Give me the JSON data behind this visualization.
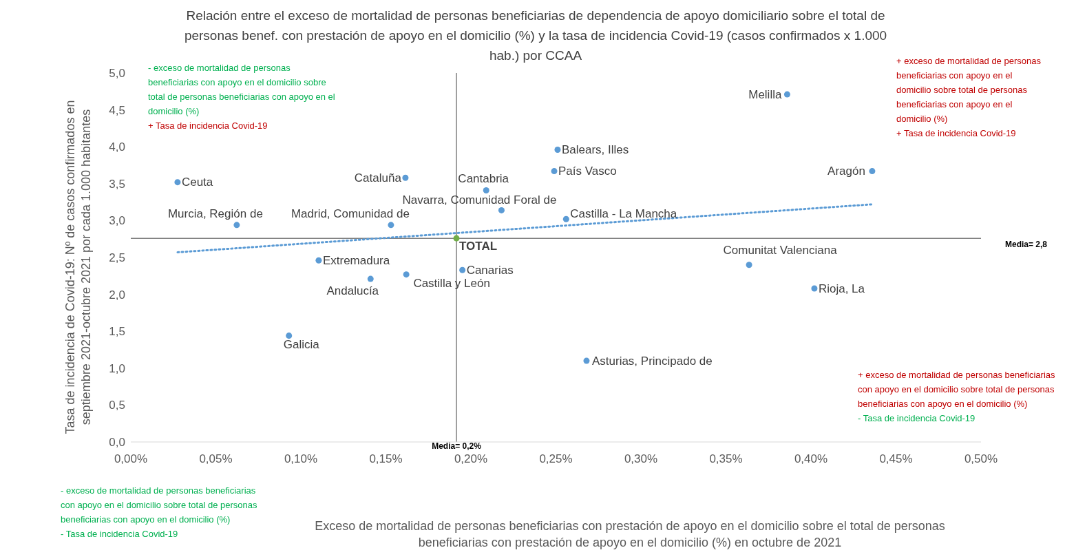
{
  "chart_data": {
    "type": "scatter",
    "title": "Relación entre el exceso de mortalidad de personas beneficiarias de dependencia de apoyo domiciliario sobre el total de personas benef. con prestación de apoyo en el domicilio (%) y la tasa de incidencia Covid-19 (casos confirmados x 1.000 hab.) por CCAA",
    "xlabel": "Exceso de mortalidad de personas beneficiarias con prestación de apoyo en el domicilio sobre el total de personas beneficiarias con prestación de apoyo en el domicilio (%) en octubre de 2021",
    "ylabel": "Tasa de incidencia de Covid-19: Nº de casos confirmados en septiembre 2021-octubre 2021 por cada 1.000 habitantes",
    "xlim": [
      0,
      0.5
    ],
    "xticks": [
      {
        "value": 0,
        "label": "0,00%"
      },
      {
        "value": 0.05,
        "label": "0,05%"
      },
      {
        "value": 0.1,
        "label": "0,10%"
      },
      {
        "value": 0.15,
        "label": "0,15%"
      },
      {
        "value": 0.2,
        "label": "0,20%"
      },
      {
        "value": 0.25,
        "label": "0,25%"
      },
      {
        "value": 0.3,
        "label": "0,30%"
      },
      {
        "value": 0.35,
        "label": "0,35%"
      },
      {
        "value": 0.4,
        "label": "0,40%"
      },
      {
        "value": 0.45,
        "label": "0,45%"
      },
      {
        "value": 0.5,
        "label": "0,50%"
      }
    ],
    "ylim": [
      0,
      5
    ],
    "yticks": [
      {
        "value": 0,
        "label": "0,0"
      },
      {
        "value": 0.5,
        "label": "0,5"
      },
      {
        "value": 1,
        "label": "1,0"
      },
      {
        "value": 1.5,
        "label": "1,5"
      },
      {
        "value": 2,
        "label": "2,0"
      },
      {
        "value": 2.5,
        "label": "2,5"
      },
      {
        "value": 3,
        "label": "3,0"
      },
      {
        "value": 3.5,
        "label": "3,5"
      },
      {
        "value": 4,
        "label": "4,0"
      },
      {
        "value": 4.5,
        "label": "4,5"
      },
      {
        "value": 5,
        "label": "5,0"
      }
    ],
    "series": [
      {
        "marker": "circle",
        "x": [
          0.386,
          0.251,
          0.249,
          0.436,
          0.0275,
          0.1615,
          0.209,
          0.218,
          0.256,
          0.0623,
          0.153,
          0.1915,
          0.1105,
          0.3636,
          0.402,
          0.195,
          0.162,
          0.141,
          0.093,
          0.268
        ],
        "values": [
          4.71,
          3.96,
          3.67,
          3.67,
          3.52,
          3.58,
          3.41,
          3.14,
          3.02,
          2.94,
          2.94,
          2.76,
          2.46,
          2.4,
          2.08,
          2.33,
          2.27,
          2.21,
          1.44,
          1.1
        ],
        "colors": [
          "#5b9bd5",
          "#5b9bd5",
          "#5b9bd5",
          "#5b9bd5",
          "#5b9bd5",
          "#5b9bd5",
          "#5b9bd5",
          "#5b9bd5",
          "#5b9bd5",
          "#5b9bd5",
          "#5b9bd5",
          "#70ad47",
          "#5b9bd5",
          "#5b9bd5",
          "#5b9bd5",
          "#5b9bd5",
          "#5b9bd5",
          "#5b9bd5",
          "#5b9bd5",
          "#5b9bd5"
        ]
      },
      {
        "type": "line",
        "x": [
          0.0275,
          0.436
        ],
        "values": [
          2.57,
          3.22
        ],
        "color": "#5b9bd5",
        "line_style": "dotted"
      }
    ],
    "ref_lines": [
      {
        "axis": "x",
        "value": 0.1915,
        "label": "Media= 0,2%",
        "color": "#808080"
      },
      {
        "axis": "y",
        "value": 2.76,
        "label": "Media= 2,8",
        "color": "#808080"
      }
    ],
    "annotations": [
      {
        "text": "Melilla",
        "x": 0.386,
        "y": 4.71
      },
      {
        "text": "Balears, Illes",
        "x": 0.251,
        "y": 3.96
      },
      {
        "text": "País Vasco",
        "x": 0.249,
        "y": 3.67
      },
      {
        "text": "Aragón",
        "x": 0.436,
        "y": 3.67
      },
      {
        "text": "Ceuta",
        "x": 0.0275,
        "y": 3.52
      },
      {
        "text": "Cataluña",
        "x": 0.1615,
        "y": 3.58
      },
      {
        "text": "Cantabria",
        "x": 0.209,
        "y": 3.41
      },
      {
        "text": "Navarra, Comunidad Foral de",
        "x": 0.218,
        "y": 3.14
      },
      {
        "text": "Castilla - La Mancha",
        "x": 0.256,
        "y": 3.02
      },
      {
        "text": "Murcia, Región de",
        "x": 0.0623,
        "y": 2.94
      },
      {
        "text": "Madrid, Comunidad de",
        "x": 0.153,
        "y": 2.94
      },
      {
        "text": "TOTAL",
        "x": 0.1915,
        "y": 2.76
      },
      {
        "text": "Extremadura",
        "x": 0.1105,
        "y": 2.46
      },
      {
        "text": "Comunitat Valenciana",
        "x": 0.3636,
        "y": 2.4
      },
      {
        "text": "Rioja, La",
        "x": 0.402,
        "y": 2.08
      },
      {
        "text": "Canarias",
        "x": 0.195,
        "y": 2.33
      },
      {
        "text": "Castilla y León",
        "x": 0.162,
        "y": 2.27
      },
      {
        "text": "Andalucía",
        "x": 0.141,
        "y": 2.21
      },
      {
        "text": "Galicia",
        "x": 0.093,
        "y": 1.44
      },
      {
        "text": "Asturias, Principado de",
        "x": 0.268,
        "y": 1.1
      },
      "- exceso de mortalidad de personas beneficiarias con apoyo en el domicilio sobre total de personas beneficiarias con apoyo en el domicilio (%)",
      "+ Tasa de incidencia Covid-19",
      "+ exceso de mortalidad de personas beneficiarias con apoyo en el domicilio sobre total de personas beneficiarias con apoyo en el domicilio (%)",
      "+ Tasa de incidencia Covid-19",
      "+ exceso de mortalidad de personas beneficiarias con apoyo en el domicilio sobre total de personas beneficiarias con apoyo en el domicilio (%)",
      "- Tasa de incidencia Covid-19",
      "- exceso de mortalidad de personas beneficiarias con apoyo en el domicilio sobre total de personas beneficiarias con apoyo en el domicilio (%)",
      "- Tasa de incidencia Covid-19"
    ]
  }
}
